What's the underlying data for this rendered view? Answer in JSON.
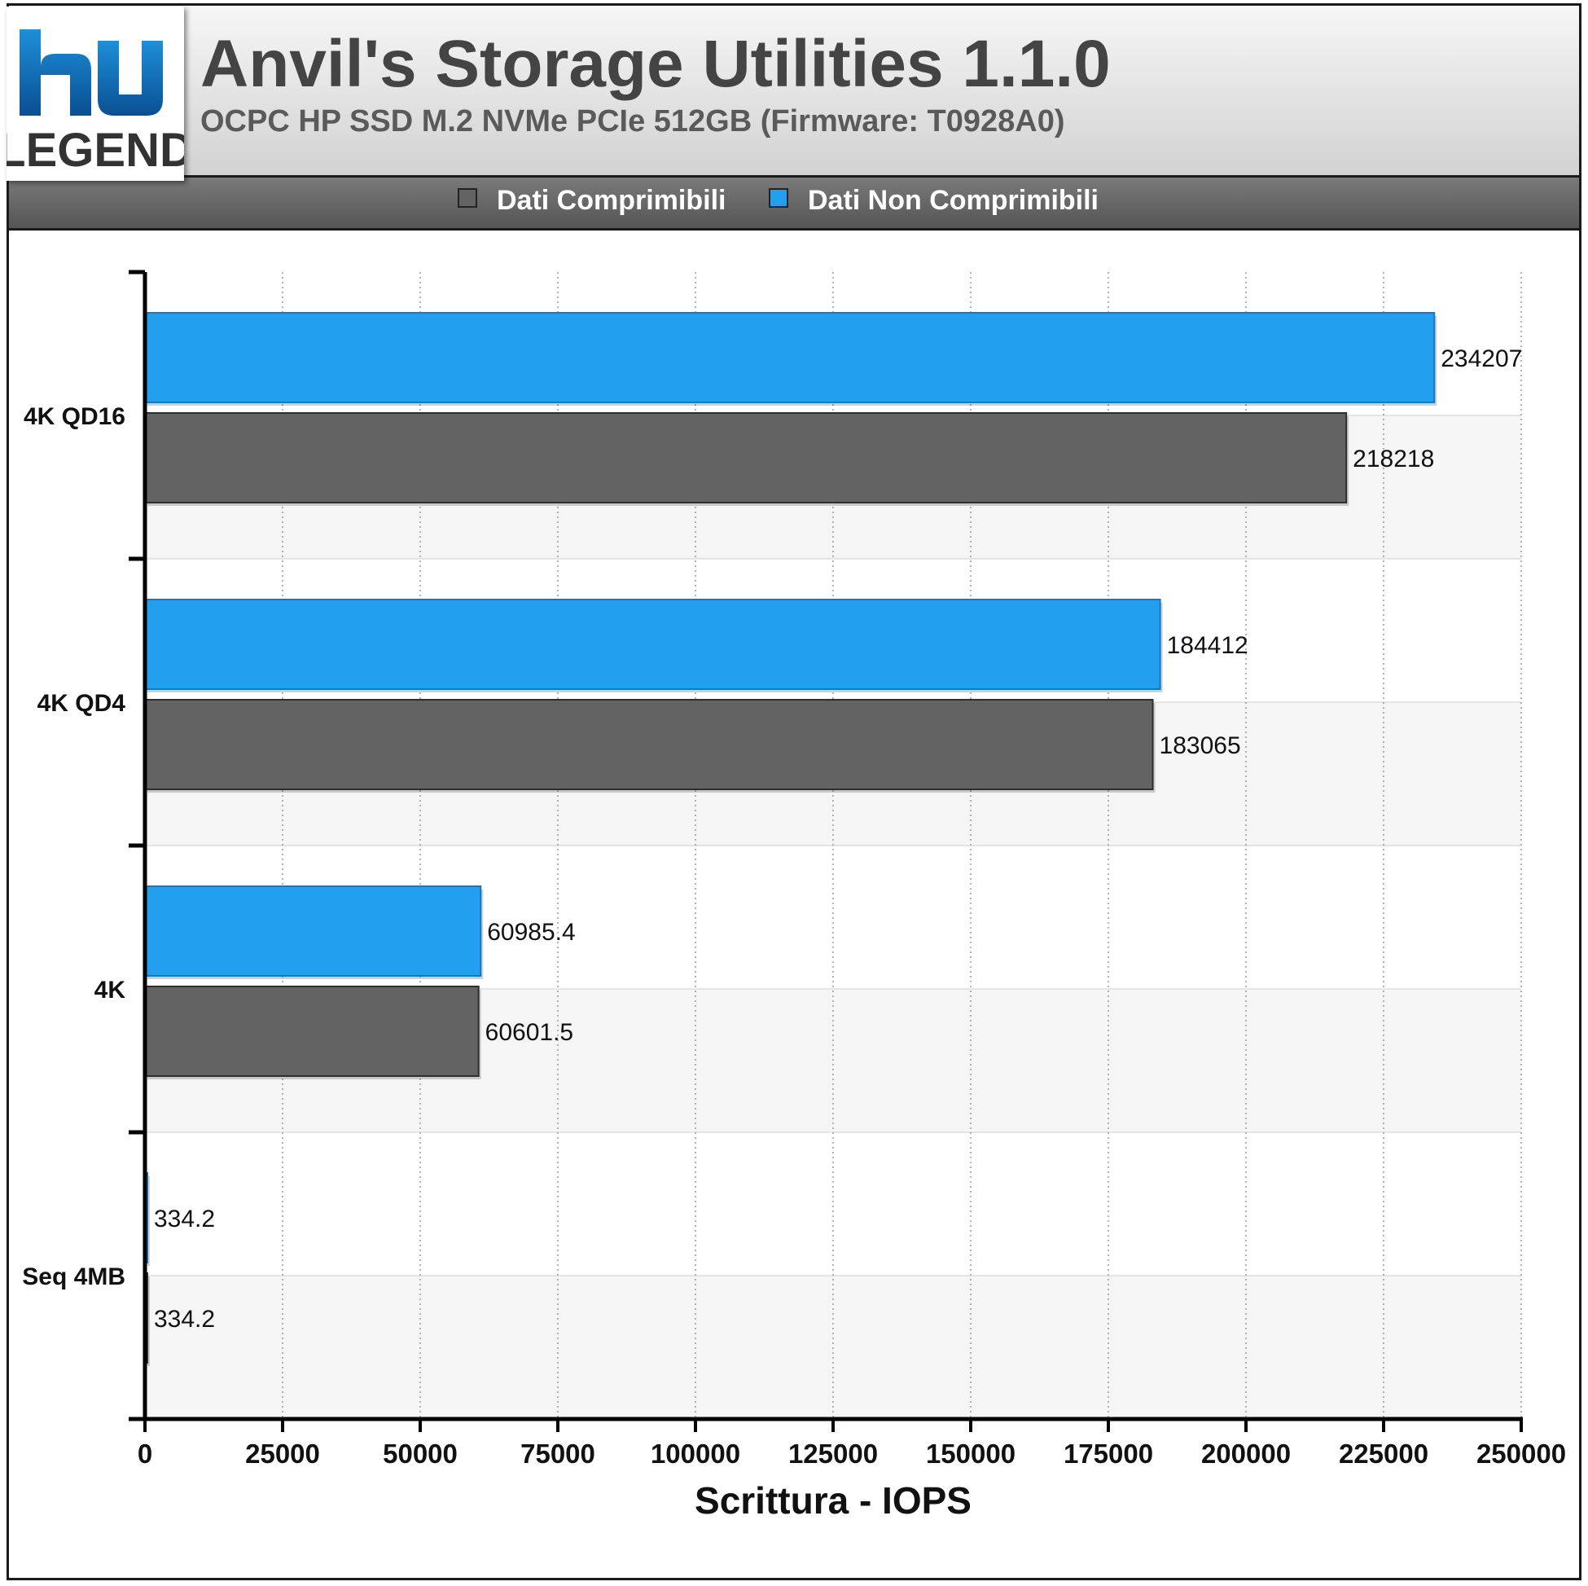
{
  "header": {
    "title": "Anvil's Storage Utilities 1.1.0",
    "subtitle": "OCPC HP SSD M.2 NVMe PCIe 512GB (Firmware: T0928A0)",
    "logo_text_top": "hu",
    "logo_text_bottom": "LEGEND"
  },
  "colors": {
    "series_compressible": "#636363",
    "series_incompressible": "#229fef",
    "header_dark": "#555555"
  },
  "chart_data": {
    "type": "bar",
    "orientation": "horizontal",
    "categories": [
      "4K QD16",
      "4K QD4",
      "4K",
      "Seq 4MB"
    ],
    "series": [
      {
        "name": "Dati Non Comprimibili",
        "values": [
          234207,
          184412,
          60985.4,
          334.2
        ]
      },
      {
        "name": "Dati Comprimibili",
        "values": [
          218218,
          183065,
          60601.5,
          334.2
        ]
      }
    ],
    "value_labels": [
      [
        "234207",
        "184412",
        "60985.4",
        "334.2"
      ],
      [
        "218218",
        "183065",
        "60601.5",
        "334.2"
      ]
    ],
    "xlabel": "Scrittura - IOPS",
    "xlim": [
      0,
      250000
    ],
    "xticks": [
      0,
      25000,
      50000,
      75000,
      100000,
      125000,
      150000,
      175000,
      200000,
      225000,
      250000
    ],
    "grid": "vertical dotted",
    "legend": {
      "placement": "top-center",
      "entries": [
        {
          "name": "Dati Comprimibili"
        },
        {
          "name": "Dati Non Comprimibili"
        }
      ]
    }
  }
}
